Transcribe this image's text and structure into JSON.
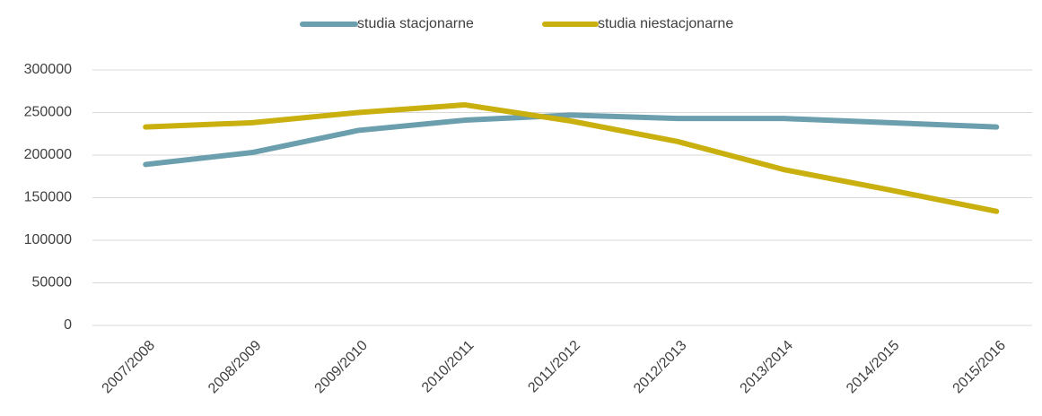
{
  "chart_data": {
    "type": "line",
    "categories": [
      "2007/2008",
      "2008/2009",
      "2009/2010",
      "2010/2011",
      "2011/2012",
      "2012/2013",
      "2013/2014",
      "2014/2015",
      "2015/2016"
    ],
    "series": [
      {
        "name": "studia stacjonarne",
        "color": "#6c9fad",
        "values": [
          189000,
          203000,
          229000,
          241000,
          247000,
          243000,
          243000,
          238000,
          233000
        ]
      },
      {
        "name": "studia niestacjonarne",
        "color": "#c9b00f",
        "values": [
          233000,
          238000,
          250000,
          259000,
          240000,
          216000,
          183000,
          159000,
          134000
        ]
      }
    ],
    "ylim": [
      0,
      300000
    ],
    "yticks": [
      0,
      50000,
      100000,
      150000,
      200000,
      250000,
      300000
    ],
    "grid": true,
    "legend": "top"
  }
}
